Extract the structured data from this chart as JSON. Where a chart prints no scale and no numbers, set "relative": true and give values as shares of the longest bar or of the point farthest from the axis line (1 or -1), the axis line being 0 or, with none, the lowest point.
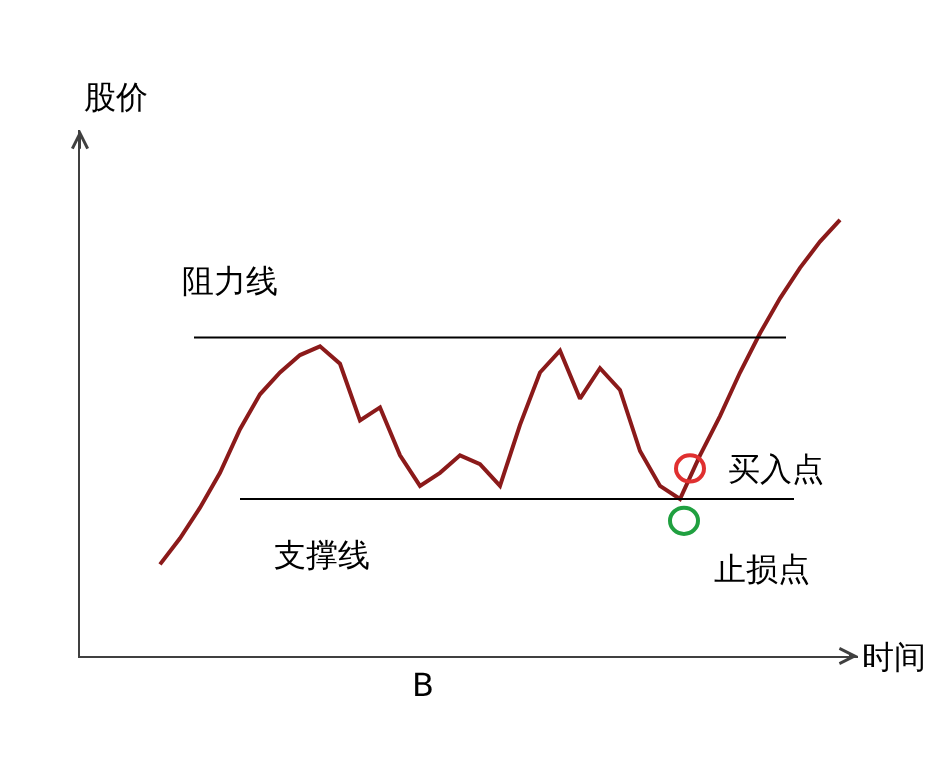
{
  "chart_data": {
    "type": "line",
    "relative": true,
    "xlabel": "时间",
    "ylabel": "股价",
    "categories": [
      null,
      null,
      null,
      null,
      null,
      null,
      null,
      null,
      null,
      null,
      null,
      null,
      null,
      null,
      null,
      null,
      null,
      null,
      null,
      null,
      null,
      null,
      null,
      null,
      null,
      null,
      null,
      null,
      null,
      null,
      null,
      null,
      null,
      null,
      null
    ],
    "series": [
      {
        "color": "#8b1a1a",
        "values": [
          0.21,
          0.27,
          0.34,
          0.42,
          0.52,
          0.6,
          0.65,
          0.69,
          0.71,
          0.67,
          0.54,
          0.57,
          0.46,
          0.39,
          0.42,
          0.46,
          0.44,
          0.39,
          0.53,
          0.65,
          0.7,
          0.59,
          0.66,
          0.61,
          0.47,
          0.39,
          0.36,
          0.46,
          0.55,
          0.65,
          0.74,
          0.82,
          0.89,
          0.95,
          1
        ]
      }
    ],
    "ref_lines": [
      {
        "axis": "y",
        "value": 0.73,
        "label": "阻力线",
        "color": "#000000"
      },
      {
        "axis": "y",
        "value": 0.36,
        "label": "支撑线",
        "color": "#000000"
      }
    ],
    "annotations": [
      "买入点",
      "止损点",
      "B"
    ],
    "legend": false,
    "marker": "none",
    "line_style": "solid"
  }
}
